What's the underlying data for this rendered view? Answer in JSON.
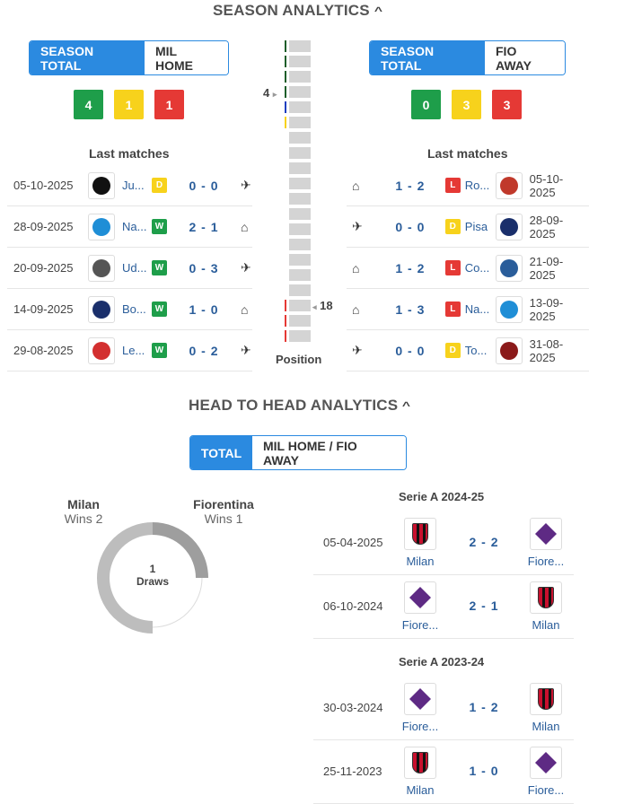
{
  "season": {
    "title": "SEASON ANALYTICS",
    "home": {
      "toggle": [
        "SEASON TOTAL",
        "MIL HOME"
      ],
      "wdl": [
        "4",
        "1",
        "1"
      ],
      "last_title": "Last matches",
      "matches": [
        {
          "date": "05-10-2025",
          "team": "Ju...",
          "res": "D",
          "score": "0 - 0",
          "venue": "away",
          "logo": "#111111"
        },
        {
          "date": "28-09-2025",
          "team": "Na...",
          "res": "W",
          "score": "2 - 1",
          "venue": "home",
          "logo": "#1f8ed6"
        },
        {
          "date": "20-09-2025",
          "team": "Ud...",
          "res": "W",
          "score": "0 - 3",
          "venue": "away",
          "logo": "#555555"
        },
        {
          "date": "14-09-2025",
          "team": "Bo...",
          "res": "W",
          "score": "1 - 0",
          "venue": "home",
          "logo": "#1a2f6b"
        },
        {
          "date": "29-08-2025",
          "team": "Le...",
          "res": "W",
          "score": "0 - 2",
          "venue": "away",
          "logo": "#d32f2f"
        }
      ]
    },
    "away": {
      "toggle": [
        "SEASON TOTAL",
        "FIO AWAY"
      ],
      "wdl": [
        "0",
        "3",
        "3"
      ],
      "last_title": "Last matches",
      "matches": [
        {
          "date": "05-10-2025",
          "team": "Ro...",
          "res": "L",
          "score": "1 - 2",
          "venue": "home",
          "logo": "#c0392b"
        },
        {
          "date": "28-09-2025",
          "team": "Pisa",
          "res": "D",
          "score": "0 - 0",
          "venue": "away",
          "logo": "#1a2f6b"
        },
        {
          "date": "21-09-2025",
          "team": "Co...",
          "res": "L",
          "score": "1 - 2",
          "venue": "home",
          "logo": "#2a5d9a"
        },
        {
          "date": "13-09-2025",
          "team": "Na...",
          "res": "L",
          "score": "1 - 3",
          "venue": "home",
          "logo": "#1f8ed6"
        },
        {
          "date": "31-08-2025",
          "team": "To...",
          "res": "D",
          "score": "0 - 0",
          "venue": "away",
          "logo": "#8b1a1a"
        }
      ]
    },
    "position": {
      "label": "Position",
      "home_pos": "4",
      "away_pos": "18"
    }
  },
  "h2h": {
    "title": "HEAD TO HEAD ANALYTICS",
    "toggle": [
      "TOTAL",
      "MIL HOME / FIO AWAY"
    ],
    "summary": {
      "home_team": "Milan",
      "home_wins": "Wins 2",
      "away_team": "Fiorentina",
      "away_wins": "Wins 1",
      "draws_count": "1",
      "draws_label": "Draws"
    },
    "competitions": [
      {
        "title": "Serie A 2024-25",
        "matches": [
          {
            "date": "05-04-2025",
            "home": "Milan",
            "away": "Fiore...",
            "score": "2 - 2",
            "home_club": "milan",
            "away_club": "fio"
          },
          {
            "date": "06-10-2024",
            "home": "Fiore...",
            "away": "Milan",
            "score": "2 - 1",
            "home_club": "fio",
            "away_club": "milan"
          }
        ]
      },
      {
        "title": "Serie A 2023-24",
        "matches": [
          {
            "date": "30-03-2024",
            "home": "Fiore...",
            "away": "Milan",
            "score": "1 - 2",
            "home_club": "fio",
            "away_club": "milan"
          },
          {
            "date": "25-11-2023",
            "home": "Milan",
            "away": "Fiore...",
            "score": "1 - 0",
            "home_club": "milan",
            "away_club": "fio"
          }
        ]
      }
    ]
  },
  "colors": {
    "accent": "#2b8ae0",
    "win": "#1e9e4a",
    "draw": "#f7d21c",
    "loss": "#e53935",
    "link": "#2a5d9a"
  }
}
